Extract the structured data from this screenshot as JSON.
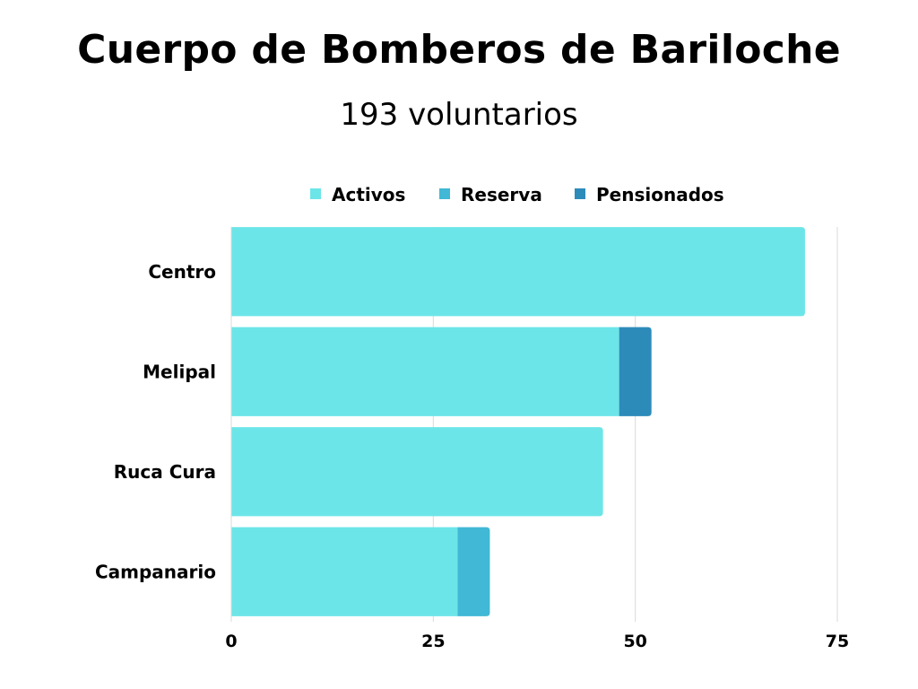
{
  "chart_data": {
    "type": "bar",
    "orientation": "horizontal",
    "stacked": true,
    "title": "Cuerpo de Bomberos de Bariloche",
    "subtitle": "193 voluntarios",
    "categories": [
      "Centro",
      "Melipal",
      "Ruca Cura",
      "Campanario"
    ],
    "series": [
      {
        "name": "Activos",
        "color": "#6ce5e8",
        "values": [
          71,
          48,
          46,
          28
        ]
      },
      {
        "name": "Reserva",
        "color": "#41b8d5",
        "values": [
          0,
          0,
          0,
          4
        ]
      },
      {
        "name": "Pensionados",
        "color": "#2d8bba",
        "values": [
          0,
          4,
          0,
          0
        ]
      }
    ],
    "xlim": [
      0,
      75
    ],
    "xticks": [
      0,
      25,
      50,
      75
    ],
    "tick_labels": [
      "0",
      "25",
      "50",
      "75"
    ],
    "grid": true,
    "legend_position": "top"
  }
}
